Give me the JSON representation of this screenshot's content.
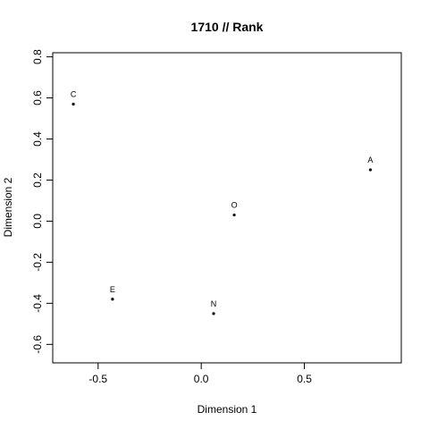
{
  "chart_data": {
    "type": "scatter",
    "title": "1710 // Rank",
    "xlabel": "Dimension 1",
    "ylabel": "Dimension 2",
    "xlim": [
      -0.72,
      0.97
    ],
    "ylim": [
      -0.69,
      0.82
    ],
    "x_ticks": [
      -0.5,
      0.0,
      0.5
    ],
    "x_tick_labels": [
      "-0.5",
      "0.0",
      "0.5"
    ],
    "y_ticks": [
      -0.6,
      -0.4,
      -0.2,
      0.0,
      0.2,
      0.4,
      0.6,
      0.8
    ],
    "y_tick_labels": [
      "-0.6",
      "-0.4",
      "-0.2",
      "0.0",
      "0.2",
      "0.4",
      "0.6",
      "0.8"
    ],
    "grid": false,
    "points": [
      {
        "label": "C",
        "x": -0.62,
        "y": 0.57
      },
      {
        "label": "A",
        "x": 0.82,
        "y": 0.25
      },
      {
        "label": "O",
        "x": 0.16,
        "y": 0.03
      },
      {
        "label": "E",
        "x": -0.43,
        "y": -0.38
      },
      {
        "label": "N",
        "x": 0.06,
        "y": -0.45
      }
    ],
    "point_color": "#000000"
  }
}
